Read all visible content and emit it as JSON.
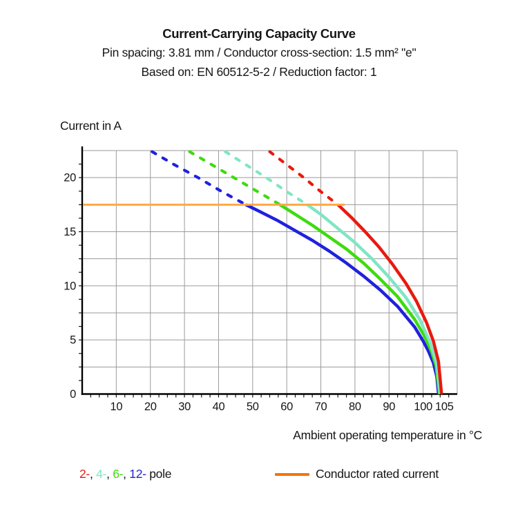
{
  "header": {
    "title": "Current-Carrying Capacity Curve",
    "subtitle1": "Pin spacing: 3.81 mm / Conductor cross-section: 1.5 mm² \"e\"",
    "subtitle2": "Based on: EN 60512-5-2 / Reduction factor: 1"
  },
  "chart_data": {
    "type": "line",
    "title": "Current-Carrying Capacity Curve",
    "xlabel": "Ambient operating temperature in °C",
    "ylabel": "Current in A",
    "xlim": [
      0,
      110
    ],
    "ylim": [
      0,
      22.5
    ],
    "x_ticks": [
      10,
      20,
      30,
      40,
      50,
      60,
      70,
      80,
      90,
      100,
      105
    ],
    "y_ticks": [
      0,
      5,
      10,
      15,
      20
    ],
    "x_minor_tick_step": 2.5,
    "y_minor_tick_step": 1.25,
    "grid": {
      "x_step": 10,
      "y_step": 2.5,
      "color": "#9a9a9a"
    },
    "rated_current": {
      "value": 17.5,
      "x_start": 0,
      "x_end": 77,
      "line_color": "#ffa843",
      "label": "Conductor rated current"
    },
    "series": [
      {
        "name": "12-pole",
        "color": "#2021dd",
        "dashed_above_rated": [
          [
            20.5,
            22.4
          ],
          [
            27,
            21.2
          ],
          [
            34,
            20.0
          ],
          [
            41,
            18.7
          ],
          [
            48,
            17.5
          ]
        ],
        "solid": [
          [
            48,
            17.5
          ],
          [
            52.5,
            16.8
          ],
          [
            57.5,
            16.0
          ],
          [
            62.5,
            15.1
          ],
          [
            67.5,
            14.2
          ],
          [
            72.5,
            13.2
          ],
          [
            77.5,
            12.1
          ],
          [
            82.5,
            10.9
          ],
          [
            87.5,
            9.6
          ],
          [
            92.5,
            8.1
          ],
          [
            97.5,
            6.2
          ],
          [
            100,
            4.9
          ],
          [
            101.5,
            4.0
          ],
          [
            103,
            2.9
          ],
          [
            104,
            1.6
          ],
          [
            104.5,
            0
          ]
        ]
      },
      {
        "name": "6-pole",
        "color": "#3edb10",
        "dashed_above_rated": [
          [
            31.5,
            22.4
          ],
          [
            38,
            21.2
          ],
          [
            45,
            19.9
          ],
          [
            51.5,
            18.7
          ],
          [
            58,
            17.5
          ]
        ],
        "solid": [
          [
            58,
            17.5
          ],
          [
            62.5,
            16.6
          ],
          [
            67.5,
            15.6
          ],
          [
            72.5,
            14.5
          ],
          [
            77.5,
            13.4
          ],
          [
            82.5,
            12.1
          ],
          [
            87.5,
            10.6
          ],
          [
            92.5,
            9.0
          ],
          [
            97.5,
            6.9
          ],
          [
            100.5,
            5.3
          ],
          [
            102.5,
            3.9
          ],
          [
            103.8,
            2.6
          ],
          [
            104.8,
            0
          ]
        ]
      },
      {
        "name": "4-pole",
        "color": "#80e5c5",
        "dashed_above_rated": [
          [
            42,
            22.4
          ],
          [
            48,
            21.2
          ],
          [
            54,
            20.0
          ],
          [
            60,
            18.7
          ],
          [
            66,
            17.5
          ]
        ],
        "solid": [
          [
            66,
            17.5
          ],
          [
            70,
            16.6
          ],
          [
            75,
            15.3
          ],
          [
            80,
            14.0
          ],
          [
            85,
            12.5
          ],
          [
            90,
            10.8
          ],
          [
            95,
            8.9
          ],
          [
            99,
            6.9
          ],
          [
            102,
            4.8
          ],
          [
            104,
            2.8
          ],
          [
            105,
            0
          ]
        ]
      },
      {
        "name": "2-pole",
        "color": "#e8190f",
        "dashed_above_rated": [
          [
            55,
            22.4
          ],
          [
            60,
            21.2
          ],
          [
            65,
            20.0
          ],
          [
            70,
            18.7
          ],
          [
            75,
            17.5
          ]
        ],
        "solid": [
          [
            75,
            17.5
          ],
          [
            79,
            16.3
          ],
          [
            83,
            15.0
          ],
          [
            87,
            13.6
          ],
          [
            91,
            12.0
          ],
          [
            95,
            10.2
          ],
          [
            98,
            8.6
          ],
          [
            101,
            6.6
          ],
          [
            103,
            4.9
          ],
          [
            104.5,
            3.0
          ],
          [
            105.4,
            0
          ]
        ]
      }
    ]
  },
  "legend": {
    "pole_items": [
      {
        "label": "2-",
        "color": "#e8190f"
      },
      {
        "label": "4-",
        "color": "#80e5c5"
      },
      {
        "label": "6-",
        "color": "#3edb10"
      },
      {
        "label": "12-",
        "color": "#2021dd"
      }
    ],
    "separator": ", ",
    "suffix": " pole",
    "rated": {
      "swatch_color": "#f27405",
      "label": "Conductor rated current"
    }
  }
}
